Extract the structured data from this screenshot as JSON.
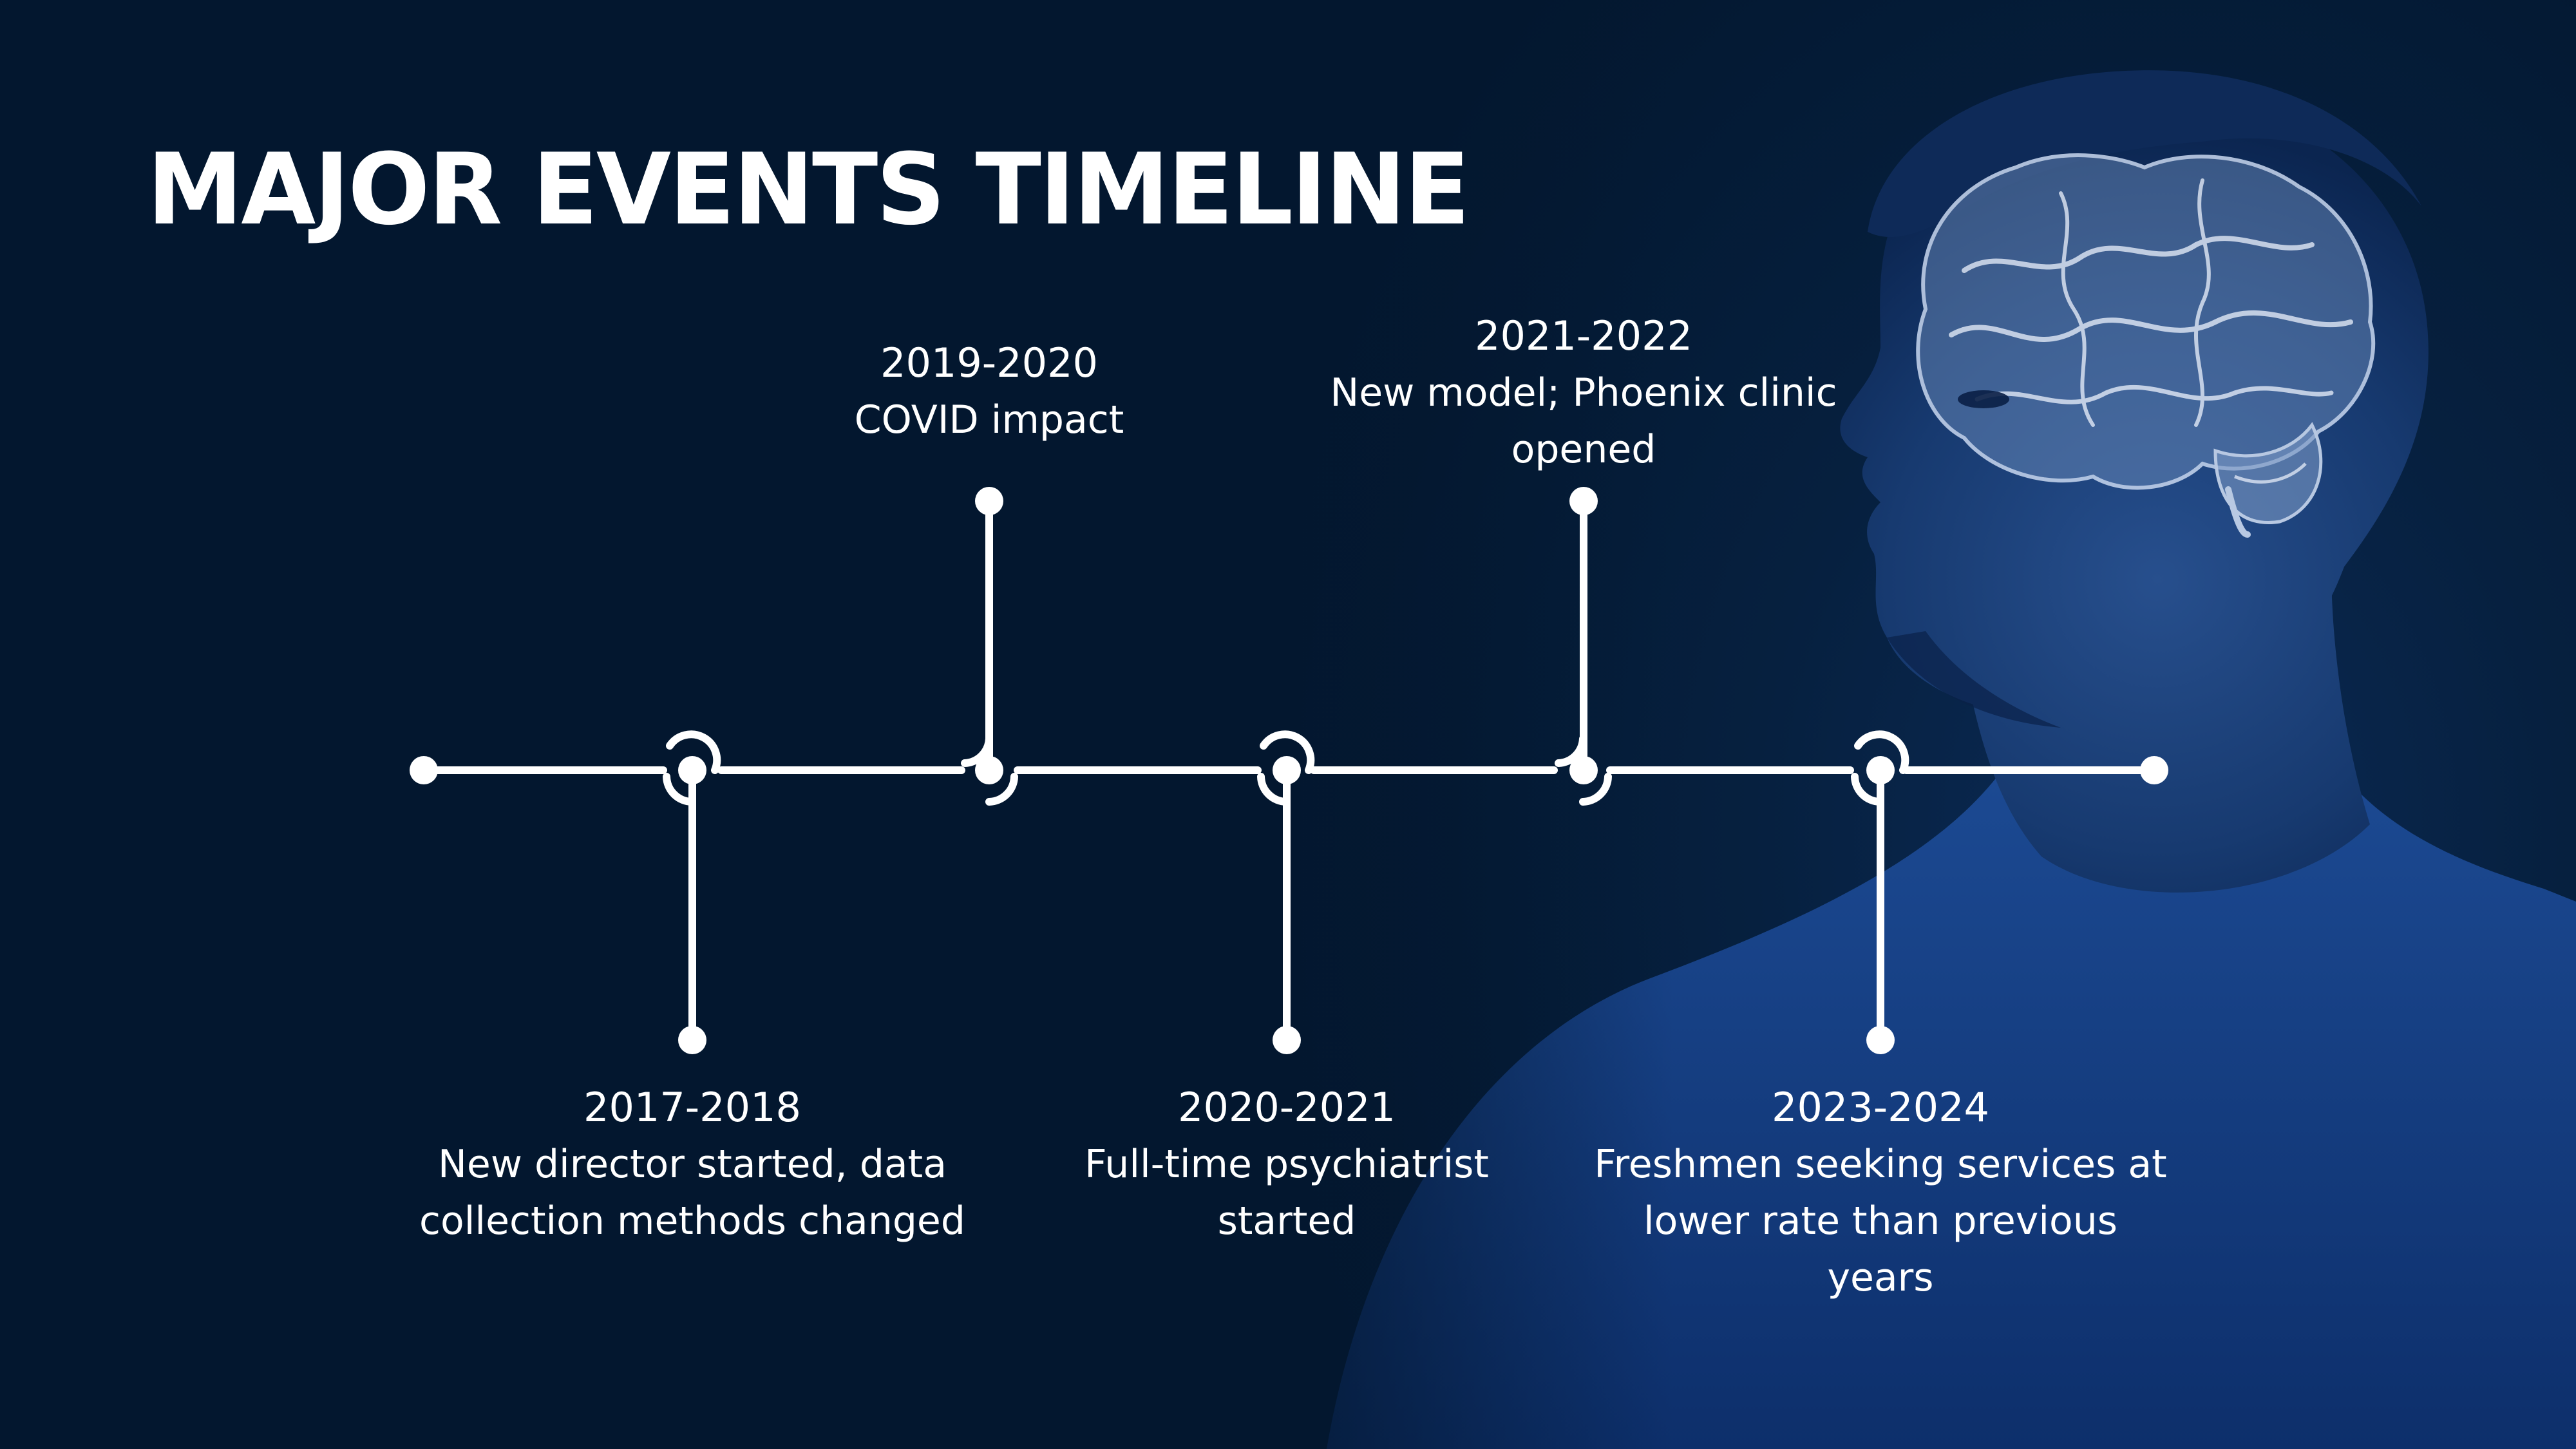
{
  "slide": {
    "title": "MAJOR EVENTS TIMELINE",
    "accent_color": "#ffffff",
    "background_color": "#03162f"
  },
  "events": [
    {
      "year": "2017-2018",
      "description": "New director started, data collection methods changed",
      "position": "below"
    },
    {
      "year": "2019-2020",
      "description": "COVID impact",
      "position": "above"
    },
    {
      "year": "2020-2021",
      "description": "Full-time psychiatrist started",
      "position": "below"
    },
    {
      "year": "2021-2022",
      "description": "New model; Phoenix clinic opened",
      "position": "above"
    },
    {
      "year": "2023-2024",
      "description": "Freshmen seeking services at lower rate than previous years",
      "position": "below"
    }
  ],
  "image": {
    "subject": "man in profile with brain illustration",
    "icon": "brain-illustration"
  }
}
